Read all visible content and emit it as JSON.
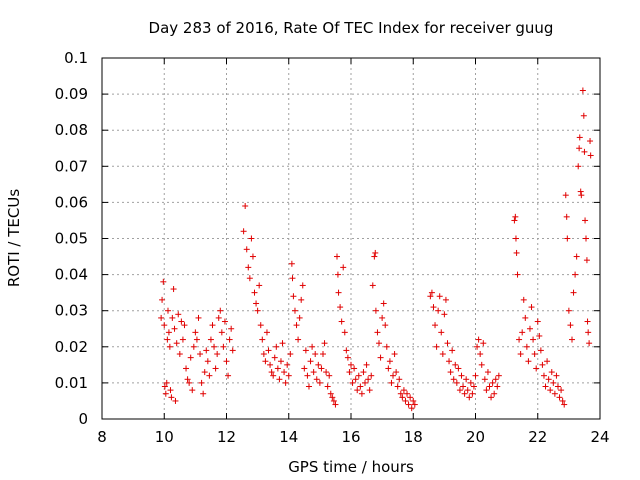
{
  "chart_data": {
    "type": "scatter",
    "title": "Day 283 of 2016, Rate Of TEC Index for receiver guug",
    "xlabel": "GPS time / hours",
    "ylabel": "ROTI / TECUs",
    "xlim": [
      8,
      24
    ],
    "ylim": [
      0,
      0.1
    ],
    "grid": true,
    "x_ticks": [
      "8",
      "10",
      "12",
      "14",
      "16",
      "18",
      "20",
      "22",
      "24"
    ],
    "y_ticks": [
      "0",
      "0.01",
      "0.02",
      "0.03",
      "0.04",
      "0.05",
      "0.06",
      "0.07",
      "0.08",
      "0.09",
      "0.1"
    ],
    "marker": "+",
    "marker_color": "#e00000",
    "series": [
      {
        "name": "ROTI",
        "points": [
          [
            9.9,
            0.028
          ],
          [
            9.93,
            0.033
          ],
          [
            9.97,
            0.038
          ],
          [
            10.0,
            0.026
          ],
          [
            10.02,
            0.009
          ],
          [
            10.05,
            0.007
          ],
          [
            10.08,
            0.01
          ],
          [
            10.1,
            0.022
          ],
          [
            10.12,
            0.03
          ],
          [
            10.15,
            0.024
          ],
          [
            10.18,
            0.02
          ],
          [
            10.2,
            0.008
          ],
          [
            10.23,
            0.006
          ],
          [
            10.26,
            0.028
          ],
          [
            10.3,
            0.036
          ],
          [
            10.33,
            0.025
          ],
          [
            10.36,
            0.005
          ],
          [
            10.4,
            0.021
          ],
          [
            10.45,
            0.029
          ],
          [
            10.5,
            0.018
          ],
          [
            10.55,
            0.027
          ],
          [
            10.6,
            0.022
          ],
          [
            10.65,
            0.026
          ],
          [
            10.7,
            0.014
          ],
          [
            10.75,
            0.011
          ],
          [
            10.8,
            0.01
          ],
          [
            10.85,
            0.017
          ],
          [
            10.9,
            0.008
          ],
          [
            10.95,
            0.02
          ],
          [
            11.0,
            0.024
          ],
          [
            11.05,
            0.022
          ],
          [
            11.1,
            0.028
          ],
          [
            11.15,
            0.018
          ],
          [
            11.2,
            0.01
          ],
          [
            11.25,
            0.007
          ],
          [
            11.3,
            0.013
          ],
          [
            11.35,
            0.019
          ],
          [
            11.4,
            0.016
          ],
          [
            11.45,
            0.012
          ],
          [
            11.5,
            0.022
          ],
          [
            11.55,
            0.026
          ],
          [
            11.6,
            0.02
          ],
          [
            11.65,
            0.014
          ],
          [
            11.7,
            0.018
          ],
          [
            11.75,
            0.028
          ],
          [
            11.8,
            0.03
          ],
          [
            11.85,
            0.024
          ],
          [
            11.9,
            0.02
          ],
          [
            11.95,
            0.027
          ],
          [
            12.0,
            0.016
          ],
          [
            12.05,
            0.012
          ],
          [
            12.1,
            0.022
          ],
          [
            12.15,
            0.025
          ],
          [
            12.2,
            0.019
          ],
          [
            12.55,
            0.052
          ],
          [
            12.6,
            0.059
          ],
          [
            12.65,
            0.047
          ],
          [
            12.7,
            0.042
          ],
          [
            12.75,
            0.039
          ],
          [
            12.8,
            0.05
          ],
          [
            12.85,
            0.045
          ],
          [
            12.9,
            0.035
          ],
          [
            12.95,
            0.032
          ],
          [
            13.0,
            0.03
          ],
          [
            13.05,
            0.037
          ],
          [
            13.1,
            0.026
          ],
          [
            13.15,
            0.022
          ],
          [
            13.2,
            0.018
          ],
          [
            13.25,
            0.016
          ],
          [
            13.3,
            0.024
          ],
          [
            13.35,
            0.019
          ],
          [
            13.4,
            0.015
          ],
          [
            13.45,
            0.013
          ],
          [
            13.5,
            0.012
          ],
          [
            13.55,
            0.017
          ],
          [
            13.6,
            0.02
          ],
          [
            13.65,
            0.014
          ],
          [
            13.7,
            0.011
          ],
          [
            13.75,
            0.016
          ],
          [
            13.8,
            0.021
          ],
          [
            13.85,
            0.013
          ],
          [
            13.9,
            0.01
          ],
          [
            13.95,
            0.015
          ],
          [
            14.0,
            0.012
          ],
          [
            14.05,
            0.018
          ],
          [
            14.1,
            0.043
          ],
          [
            14.12,
            0.039
          ],
          [
            14.15,
            0.034
          ],
          [
            14.2,
            0.03
          ],
          [
            14.25,
            0.026
          ],
          [
            14.3,
            0.022
          ],
          [
            14.35,
            0.028
          ],
          [
            14.4,
            0.033
          ],
          [
            14.45,
            0.037
          ],
          [
            14.5,
            0.014
          ],
          [
            14.55,
            0.019
          ],
          [
            14.6,
            0.012
          ],
          [
            14.65,
            0.009
          ],
          [
            14.7,
            0.016
          ],
          [
            14.75,
            0.02
          ],
          [
            14.8,
            0.013
          ],
          [
            14.85,
            0.018
          ],
          [
            14.9,
            0.011
          ],
          [
            14.95,
            0.015
          ],
          [
            15.0,
            0.01
          ],
          [
            15.05,
            0.014
          ],
          [
            15.1,
            0.018
          ],
          [
            15.15,
            0.021
          ],
          [
            15.2,
            0.013
          ],
          [
            15.25,
            0.009
          ],
          [
            15.3,
            0.012
          ],
          [
            15.35,
            0.007
          ],
          [
            15.4,
            0.006
          ],
          [
            15.45,
            0.005
          ],
          [
            15.5,
            0.004
          ],
          [
            15.55,
            0.045
          ],
          [
            15.58,
            0.04
          ],
          [
            15.6,
            0.035
          ],
          [
            15.65,
            0.031
          ],
          [
            15.7,
            0.027
          ],
          [
            15.75,
            0.042
          ],
          [
            15.8,
            0.024
          ],
          [
            15.85,
            0.019
          ],
          [
            15.9,
            0.017
          ],
          [
            15.95,
            0.013
          ],
          [
            16.0,
            0.015
          ],
          [
            16.05,
            0.01
          ],
          [
            16.1,
            0.014
          ],
          [
            16.15,
            0.011
          ],
          [
            16.2,
            0.008
          ],
          [
            16.25,
            0.012
          ],
          [
            16.3,
            0.009
          ],
          [
            16.35,
            0.007
          ],
          [
            16.4,
            0.013
          ],
          [
            16.45,
            0.01
          ],
          [
            16.5,
            0.015
          ],
          [
            16.55,
            0.011
          ],
          [
            16.6,
            0.008
          ],
          [
            16.65,
            0.012
          ],
          [
            16.7,
            0.037
          ],
          [
            16.75,
            0.045
          ],
          [
            16.78,
            0.046
          ],
          [
            16.8,
            0.03
          ],
          [
            16.85,
            0.024
          ],
          [
            16.9,
            0.021
          ],
          [
            16.95,
            0.017
          ],
          [
            17.0,
            0.028
          ],
          [
            17.05,
            0.032
          ],
          [
            17.1,
            0.026
          ],
          [
            17.15,
            0.02
          ],
          [
            17.2,
            0.014
          ],
          [
            17.25,
            0.016
          ],
          [
            17.3,
            0.01
          ],
          [
            17.35,
            0.012
          ],
          [
            17.4,
            0.018
          ],
          [
            17.45,
            0.013
          ],
          [
            17.5,
            0.009
          ],
          [
            17.55,
            0.011
          ],
          [
            17.6,
            0.007
          ],
          [
            17.65,
            0.006
          ],
          [
            17.7,
            0.008
          ],
          [
            17.75,
            0.005
          ],
          [
            17.8,
            0.007
          ],
          [
            17.85,
            0.004
          ],
          [
            17.9,
            0.006
          ],
          [
            17.95,
            0.003
          ],
          [
            18.0,
            0.005
          ],
          [
            18.05,
            0.004
          ],
          [
            18.55,
            0.034
          ],
          [
            18.6,
            0.035
          ],
          [
            18.65,
            0.031
          ],
          [
            18.7,
            0.026
          ],
          [
            18.75,
            0.02
          ],
          [
            18.8,
            0.03
          ],
          [
            18.85,
            0.034
          ],
          [
            18.9,
            0.024
          ],
          [
            18.95,
            0.018
          ],
          [
            19.0,
            0.029
          ],
          [
            19.05,
            0.033
          ],
          [
            19.1,
            0.021
          ],
          [
            19.15,
            0.016
          ],
          [
            19.2,
            0.013
          ],
          [
            19.25,
            0.019
          ],
          [
            19.3,
            0.011
          ],
          [
            19.35,
            0.015
          ],
          [
            19.4,
            0.01
          ],
          [
            19.45,
            0.014
          ],
          [
            19.5,
            0.008
          ],
          [
            19.55,
            0.012
          ],
          [
            19.6,
            0.009
          ],
          [
            19.65,
            0.007
          ],
          [
            19.7,
            0.011
          ],
          [
            19.75,
            0.008
          ],
          [
            19.8,
            0.006
          ],
          [
            19.85,
            0.01
          ],
          [
            19.9,
            0.007
          ],
          [
            19.95,
            0.009
          ],
          [
            20.0,
            0.012
          ],
          [
            20.05,
            0.02
          ],
          [
            20.1,
            0.022
          ],
          [
            20.15,
            0.018
          ],
          [
            20.2,
            0.015
          ],
          [
            20.25,
            0.021
          ],
          [
            20.3,
            0.011
          ],
          [
            20.35,
            0.008
          ],
          [
            20.4,
            0.013
          ],
          [
            20.45,
            0.009
          ],
          [
            20.5,
            0.006
          ],
          [
            20.55,
            0.01
          ],
          [
            20.6,
            0.007
          ],
          [
            20.65,
            0.011
          ],
          [
            20.7,
            0.009
          ],
          [
            20.75,
            0.012
          ],
          [
            21.25,
            0.055
          ],
          [
            21.28,
            0.056
          ],
          [
            21.3,
            0.05
          ],
          [
            21.32,
            0.046
          ],
          [
            21.35,
            0.04
          ],
          [
            21.4,
            0.022
          ],
          [
            21.45,
            0.018
          ],
          [
            21.5,
            0.024
          ],
          [
            21.55,
            0.033
          ],
          [
            21.6,
            0.028
          ],
          [
            21.65,
            0.02
          ],
          [
            21.7,
            0.016
          ],
          [
            21.75,
            0.025
          ],
          [
            21.8,
            0.031
          ],
          [
            21.85,
            0.022
          ],
          [
            21.9,
            0.018
          ],
          [
            21.95,
            0.014
          ],
          [
            22.0,
            0.027
          ],
          [
            22.05,
            0.023
          ],
          [
            22.1,
            0.019
          ],
          [
            22.15,
            0.015
          ],
          [
            22.2,
            0.012
          ],
          [
            22.25,
            0.009
          ],
          [
            22.3,
            0.016
          ],
          [
            22.35,
            0.011
          ],
          [
            22.4,
            0.008
          ],
          [
            22.45,
            0.013
          ],
          [
            22.5,
            0.01
          ],
          [
            22.55,
            0.007
          ],
          [
            22.6,
            0.012
          ],
          [
            22.65,
            0.009
          ],
          [
            22.7,
            0.006
          ],
          [
            22.75,
            0.008
          ],
          [
            22.8,
            0.005
          ],
          [
            22.85,
            0.004
          ],
          [
            22.9,
            0.062
          ],
          [
            22.93,
            0.056
          ],
          [
            22.95,
            0.05
          ],
          [
            23.0,
            0.03
          ],
          [
            23.05,
            0.026
          ],
          [
            23.1,
            0.022
          ],
          [
            23.15,
            0.035
          ],
          [
            23.2,
            0.04
          ],
          [
            23.25,
            0.045
          ],
          [
            23.3,
            0.07
          ],
          [
            23.33,
            0.075
          ],
          [
            23.35,
            0.078
          ],
          [
            23.38,
            0.063
          ],
          [
            23.4,
            0.062
          ],
          [
            23.45,
            0.091
          ],
          [
            23.48,
            0.084
          ],
          [
            23.5,
            0.074
          ],
          [
            23.52,
            0.055
          ],
          [
            23.55,
            0.05
          ],
          [
            23.58,
            0.044
          ],
          [
            23.6,
            0.027
          ],
          [
            23.62,
            0.024
          ],
          [
            23.65,
            0.021
          ],
          [
            23.68,
            0.077
          ],
          [
            23.7,
            0.073
          ]
        ]
      }
    ]
  }
}
